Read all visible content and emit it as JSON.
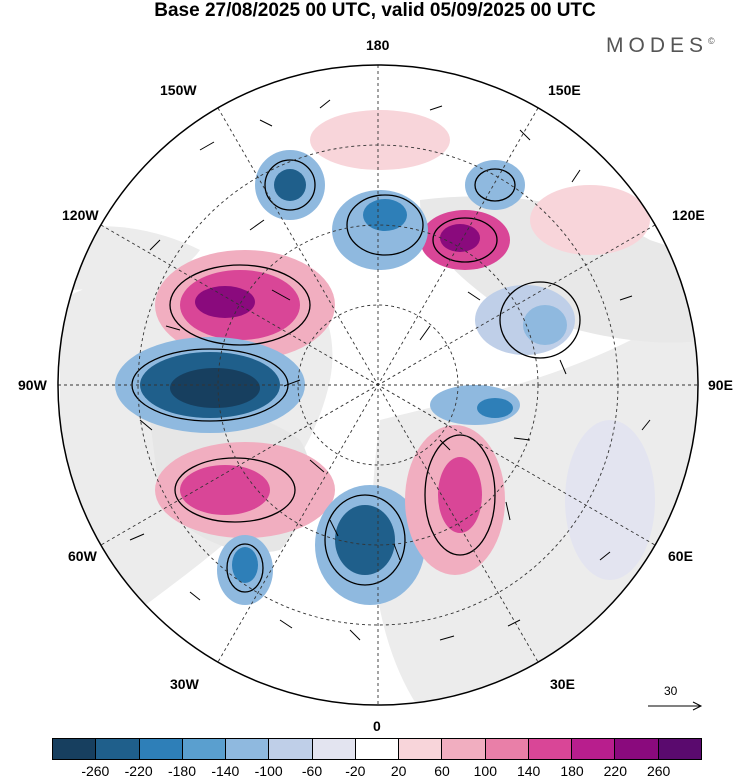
{
  "title": "Base 27/08/2025 00 UTC, valid 05/09/2025 00 UTC",
  "logo": {
    "text": "MODES",
    "mark": "©"
  },
  "longitude_labels": {
    "north": "180",
    "south": "0",
    "west": "90W",
    "east": "90E",
    "nw_upper": "150W",
    "ne_upper": "150E",
    "nw_lower": "120W",
    "ne_lower": "120E",
    "sw_upper": "60W",
    "se_upper": "60E",
    "sw_lower": "30W",
    "se_lower": "30E"
  },
  "reference_vector": {
    "value": "30"
  },
  "colorbar": {
    "colors": [
      "#173f5f",
      "#1f5f8b",
      "#2e7fb8",
      "#5a9fcf",
      "#8fb9df",
      "#bfcfe8",
      "#e3e4f0",
      "#ffffff",
      "#f8d5da",
      "#f1aec0",
      "#e97fa8",
      "#d94697",
      "#b81e8d",
      "#8a0a7d",
      "#5a0a6e"
    ],
    "ticks": [
      "-260",
      "-220",
      "-180",
      "-140",
      "-100",
      "-60",
      "-20",
      "20",
      "60",
      "100",
      "140",
      "180",
      "220",
      "260"
    ]
  }
}
